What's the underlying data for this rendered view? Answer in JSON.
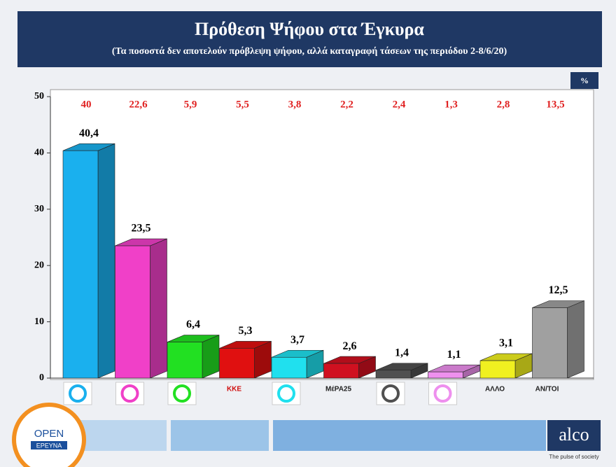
{
  "chart_data": {
    "type": "bar3d",
    "title": "Πρόθεση Ψήφου στα Έγκυρα",
    "subtitle": "(Τα ποσοστά δεν αποτελούν πρόβλεψη ψήφου, αλλά καταγραφή τάσεων της περιόδου 2-8/6/20)",
    "unit": "%",
    "categories": [
      null,
      null,
      null,
      "ΚΚΕ",
      null,
      "ΜέΡΑ25",
      null,
      null,
      "ΑΛΛΟ",
      "ΑΝ/ΤΟΙ"
    ],
    "values": [
      40.4,
      23.5,
      6.4,
      5.3,
      3.7,
      2.6,
      1.4,
      1.1,
      3.1,
      12.5
    ],
    "value_labels": [
      "40,4",
      "23,5",
      "6,4",
      "5,3",
      "3,7",
      "2,6",
      "1,4",
      "1,1",
      "3,1",
      "12,5"
    ],
    "colors": [
      "#1ab0ee",
      "#f040c8",
      "#22e022",
      "#e01010",
      "#20e0ee",
      "#d01020",
      "#505050",
      "#ee90ee",
      "#f0f020",
      "#a0a0a0"
    ],
    "previous": {
      "values": [
        40,
        22.6,
        5.9,
        5.5,
        3.8,
        2.2,
        2.4,
        1.3,
        2.8,
        13.5
      ],
      "value_labels": [
        "40",
        "22,6",
        "5,9",
        "5,5",
        "3,8",
        "2,2",
        "2,4",
        "1,3",
        "2,8",
        "13,5"
      ],
      "color": "#e02020"
    },
    "ylim": [
      0,
      50
    ],
    "yticks": [
      0,
      10,
      20,
      30,
      40,
      50
    ]
  },
  "branding": {
    "left_top": "OPEN",
    "left_bottom": "ΕΡΕΥΝΑ",
    "right": "alco",
    "right_tagline": "The pulse of society"
  }
}
